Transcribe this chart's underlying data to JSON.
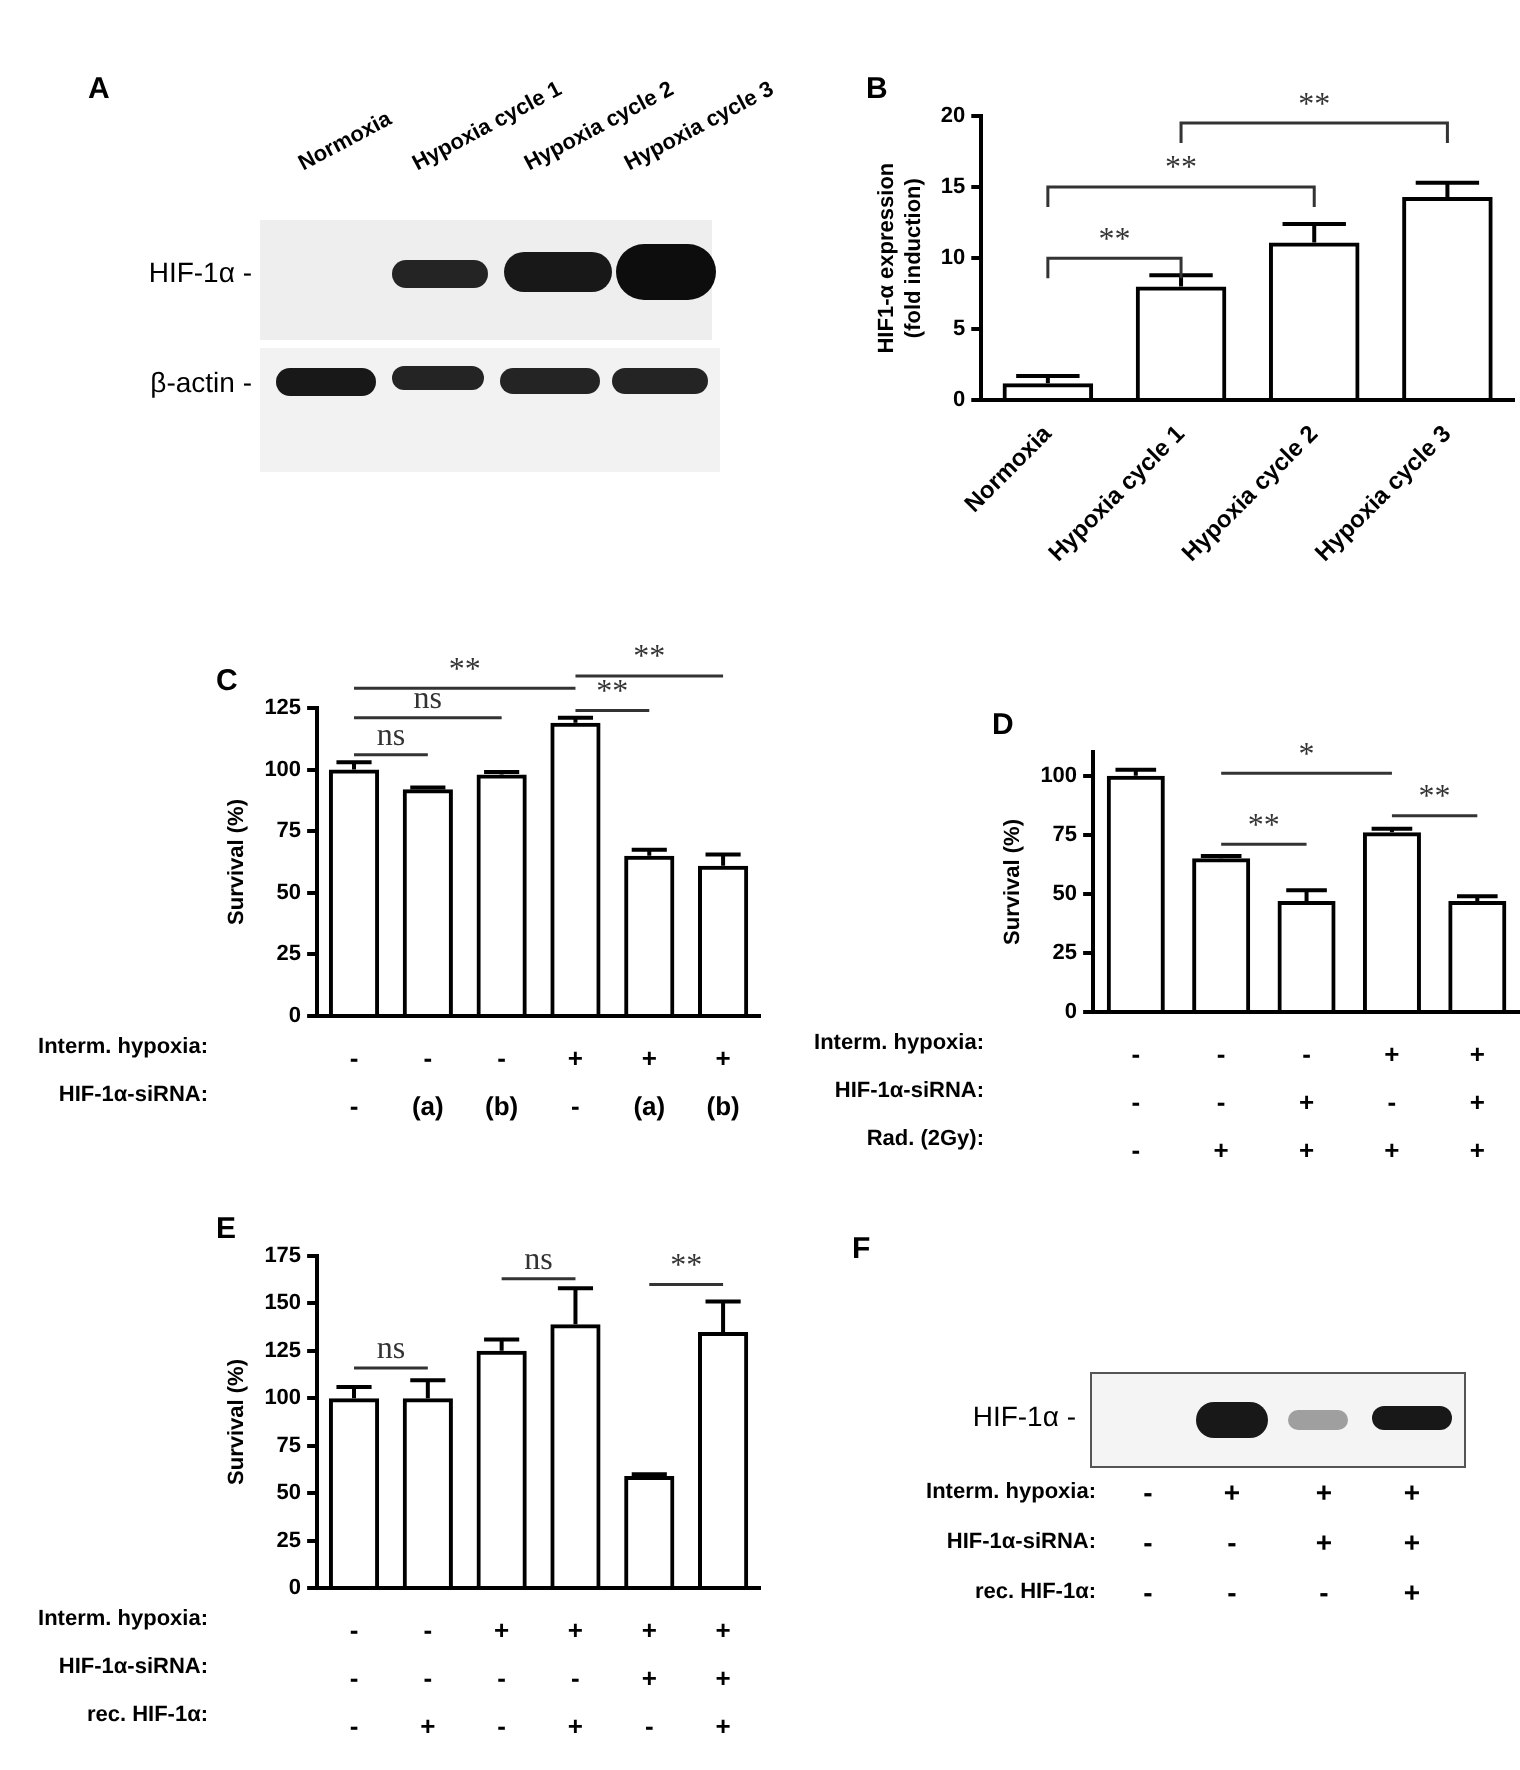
{
  "chart_data": [
    {
      "type": "other",
      "title": "A",
      "categories": [
        "Normoxia",
        "Hypoxia cycle 1",
        "Hypoxia cycle 2",
        "Hypoxia cycle 3"
      ],
      "annotations": [
        "HIF-1α -",
        "β-actin -"
      ]
    },
    {
      "type": "bar",
      "title": "B",
      "categories": [
        "Normoxia",
        "Hypoxia cycle 1",
        "Hypoxia cycle 2",
        "Hypoxia cycle 3"
      ],
      "values": [
        1.2,
        8.0,
        11.1,
        14.3
      ],
      "errors": [
        0.5,
        0.8,
        1.3,
        1.0
      ],
      "color": "#000000",
      "ylim": [
        0,
        20
      ],
      "yticks": [
        0,
        5,
        10,
        15,
        20
      ],
      "ylabel": "HIF1-α expression\n(fold induction)",
      "annotations": [
        "**",
        "**",
        "**"
      ]
    },
    {
      "type": "bar",
      "title": "C",
      "categories": [
        "-\n-",
        "-\n(a)",
        "-\n(b)",
        "+\n-",
        "+\n(a)",
        "+\n(b)"
      ],
      "values": [
        100,
        92,
        98,
        119,
        65,
        61
      ],
      "errors": [
        3,
        0.7,
        1,
        2,
        2.5,
        4.5
      ],
      "color": "#000000",
      "ylim": [
        0,
        125
      ],
      "yticks": [
        0,
        25,
        50,
        75,
        100,
        125
      ],
      "ylabel": "Survival (%)",
      "xlabel": "Interm. hypoxia:\nHIF-1α-siRNA:",
      "annotations": [
        "ns",
        "ns",
        "**",
        "**",
        "**"
      ]
    },
    {
      "type": "bar",
      "title": "D",
      "categories": [
        "-\n-\n-",
        "-\n-\n+",
        "-\n+\n+",
        "+\n-\n+",
        "+\n+\n+"
      ],
      "values": [
        100,
        65,
        47,
        76,
        47
      ],
      "errors": [
        2.5,
        1,
        4.5,
        1.5,
        2
      ],
      "color": "#000000",
      "ylim": [
        0,
        110
      ],
      "yticks": [
        0,
        25,
        50,
        75,
        100
      ],
      "ylabel": "Survival (%)",
      "xlabel": "Interm. hypoxia:\nHIF-1α-siRNA:\nRad. (2Gy):",
      "annotations": [
        "*",
        "**",
        "**"
      ]
    },
    {
      "type": "bar",
      "title": "E",
      "categories": [
        "-\n-\n-",
        "-\n-\n+",
        "+\n-\n-",
        "+\n-\n+",
        "+\n+\n-",
        "+\n+\n+"
      ],
      "values": [
        100,
        100,
        125,
        139,
        59,
        135
      ],
      "errors": [
        6,
        9.5,
        6,
        19,
        1,
        16
      ],
      "color": "#000000",
      "ylim": [
        0,
        175
      ],
      "yticks": [
        0,
        25,
        50,
        75,
        100,
        125,
        150,
        175
      ],
      "ylabel": "Survival (%)",
      "xlabel": "Interm. hypoxia:\nHIF-1α-siRNA:\nrec. HIF-1α:",
      "annotations": [
        "ns",
        "ns",
        "**"
      ]
    },
    {
      "type": "other",
      "title": "F",
      "categories": [
        "-\n-\n-",
        "+\n-\n-",
        "+\n+\n-",
        "+\n+\n+"
      ],
      "xlabel": "Interm. hypoxia:\nHIF-1α-siRNA:\nrec. HIF-1α:",
      "annotations": [
        "HIF-1α -"
      ]
    }
  ]
}
